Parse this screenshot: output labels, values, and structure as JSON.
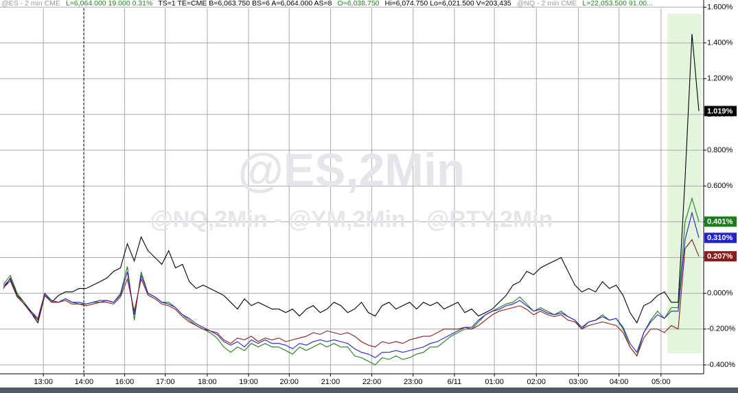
{
  "header": [
    {
      "text": "@ES - 2 min  CME",
      "color": "#9a9a9a"
    },
    {
      "text": "L=6,064.000  19.000  0.31%",
      "color": "#1e8a1e"
    },
    {
      "text": "TS=1  TE=CME  B=6,063.750  BS=6  A=6,064.000  AS=8",
      "color": "#000000"
    },
    {
      "text": "O=6,038.750",
      "color": "#1e8a1e"
    },
    {
      "text": "Hi=6,074.750  Lo=6,021.500  V=203,435",
      "color": "#000000"
    },
    {
      "text": "@NQ - 2 min  CME",
      "color": "#9a9a9a"
    },
    {
      "text": "L=22,053.500  91.00...",
      "color": "#1e8a1e"
    }
  ],
  "chart_data": {
    "type": "line",
    "watermark": "@ES,2Min",
    "subwatermark": "@NQ,2Min  -  @YM,2Min  -  @RTY,2Min",
    "ylim": [
      -0.45,
      1.64
    ],
    "yticks": [
      {
        "value": -0.4,
        "label": "-0.400%"
      },
      {
        "value": -0.2,
        "label": "-0.200%"
      },
      {
        "value": 0,
        "label": "0.000%"
      },
      {
        "value": 0.2,
        "label": "0.200%"
      },
      {
        "value": 0.4,
        "label": "0.400%"
      },
      {
        "value": 0.6,
        "label": "0.600%"
      },
      {
        "value": 0.8,
        "label": "0.800%"
      },
      {
        "value": 1.0,
        "label": "1.000%"
      },
      {
        "value": 1.2,
        "label": "1.200%"
      },
      {
        "value": 1.4,
        "label": "1.400%"
      },
      {
        "value": 1.6,
        "label": "1.600%"
      }
    ],
    "xlim": [
      -0.5,
      101.7
    ],
    "xticks": [
      {
        "value": 5.8,
        "label": "13:00"
      },
      {
        "value": 11.7,
        "label": "14:00"
      },
      {
        "value": 17.6,
        "label": "16:00"
      },
      {
        "value": 23.5,
        "label": "17:00"
      },
      {
        "value": 29.6,
        "label": "18:00"
      },
      {
        "value": 35.6,
        "label": "19:00"
      },
      {
        "value": 41.5,
        "label": "20:00"
      },
      {
        "value": 47.5,
        "label": "21:00"
      },
      {
        "value": 53.5,
        "label": "22:00"
      },
      {
        "value": 59.5,
        "label": "23:00"
      },
      {
        "value": 65.5,
        "label": "6/11"
      },
      {
        "value": 71.3,
        "label": "01:00"
      },
      {
        "value": 77.4,
        "label": "02:00"
      },
      {
        "value": 83.5,
        "label": "03:00"
      },
      {
        "value": 89.4,
        "label": "04:00"
      },
      {
        "value": 95.5,
        "label": "05:00"
      }
    ],
    "grid": true,
    "series": [
      {
        "color": "#000000",
        "last": {
          "value": 1.019,
          "label": "1.019%"
        },
        "values": [
          0.027,
          0.085,
          -0.012,
          -0.05,
          -0.108,
          -0.165,
          -0.012,
          -0.05,
          -0.012,
          0.008,
          0.008,
          0.027,
          0.027,
          0.046,
          0.065,
          0.085,
          0.123,
          0.142,
          0.277,
          0.181,
          0.315,
          0.238,
          0.2,
          0.162,
          0.238,
          0.142,
          0.162,
          0.065,
          0.027,
          0.046,
          0.027,
          0.008,
          -0.012,
          -0.05,
          -0.088,
          -0.031,
          -0.069,
          -0.05,
          -0.069,
          -0.088,
          -0.088,
          -0.108,
          -0.088,
          -0.127,
          -0.088,
          -0.069,
          -0.108,
          -0.088,
          -0.05,
          -0.069,
          -0.108,
          -0.088,
          -0.05,
          -0.108,
          -0.127,
          -0.069,
          -0.05,
          -0.088,
          -0.069,
          -0.05,
          -0.088,
          -0.05,
          -0.069,
          -0.05,
          -0.088,
          -0.069,
          -0.05,
          -0.108,
          -0.088,
          -0.127,
          -0.108,
          -0.088,
          -0.05,
          -0.012,
          0.046,
          0.065,
          0.123,
          0.104,
          0.142,
          0.162,
          0.181,
          0.2,
          0.123,
          0.046,
          0.008,
          0.027,
          0.008,
          0.065,
          0.027,
          0.046,
          -0.012,
          -0.108,
          -0.165,
          -0.069,
          -0.05,
          -0.012,
          0.008,
          -0.05,
          -0.05,
          0.64,
          1.45,
          1.019
        ]
      },
      {
        "color": "#1e7b1e",
        "last": {
          "value": 0.401,
          "label": "0.401%"
        },
        "values": [
          0.05,
          0.1,
          0.0,
          -0.05,
          -0.1,
          -0.15,
          0.0,
          -0.05,
          -0.05,
          -0.03,
          -0.05,
          -0.06,
          -0.06,
          -0.05,
          -0.05,
          -0.04,
          -0.05,
          0.0,
          0.15,
          -0.15,
          0.12,
          0.0,
          -0.02,
          -0.05,
          -0.05,
          -0.08,
          -0.12,
          -0.15,
          -0.18,
          -0.2,
          -0.22,
          -0.25,
          -0.3,
          -0.33,
          -0.3,
          -0.32,
          -0.28,
          -0.3,
          -0.28,
          -0.3,
          -0.3,
          -0.32,
          -0.34,
          -0.3,
          -0.32,
          -0.3,
          -0.28,
          -0.3,
          -0.28,
          -0.3,
          -0.3,
          -0.35,
          -0.36,
          -0.38,
          -0.4,
          -0.36,
          -0.37,
          -0.35,
          -0.37,
          -0.36,
          -0.34,
          -0.33,
          -0.3,
          -0.3,
          -0.27,
          -0.24,
          -0.22,
          -0.2,
          -0.2,
          -0.16,
          -0.12,
          -0.1,
          -0.08,
          -0.06,
          -0.05,
          -0.02,
          -0.06,
          -0.1,
          -0.08,
          -0.1,
          -0.12,
          -0.1,
          -0.13,
          -0.15,
          -0.2,
          -0.16,
          -0.15,
          -0.12,
          -0.15,
          -0.14,
          -0.2,
          -0.3,
          -0.35,
          -0.22,
          -0.15,
          -0.1,
          -0.14,
          -0.08,
          -0.08,
          0.4,
          0.53,
          0.401
        ]
      },
      {
        "color": "#2323c8",
        "last": {
          "value": 0.31,
          "label": "0.310%"
        },
        "values": [
          0.04,
          0.08,
          -0.02,
          -0.06,
          -0.1,
          -0.14,
          0.0,
          -0.04,
          -0.05,
          -0.03,
          -0.05,
          -0.05,
          -0.06,
          -0.05,
          -0.04,
          -0.04,
          -0.05,
          -0.01,
          0.12,
          -0.12,
          0.1,
          0.0,
          -0.02,
          -0.05,
          -0.06,
          -0.08,
          -0.12,
          -0.14,
          -0.17,
          -0.19,
          -0.21,
          -0.23,
          -0.27,
          -0.29,
          -0.27,
          -0.3,
          -0.26,
          -0.28,
          -0.26,
          -0.28,
          -0.28,
          -0.29,
          -0.31,
          -0.28,
          -0.29,
          -0.27,
          -0.26,
          -0.27,
          -0.26,
          -0.27,
          -0.28,
          -0.31,
          -0.33,
          -0.34,
          -0.36,
          -0.33,
          -0.33,
          -0.32,
          -0.33,
          -0.32,
          -0.31,
          -0.3,
          -0.28,
          -0.27,
          -0.25,
          -0.23,
          -0.21,
          -0.19,
          -0.19,
          -0.15,
          -0.12,
          -0.1,
          -0.09,
          -0.07,
          -0.06,
          -0.04,
          -0.07,
          -0.1,
          -0.09,
          -0.11,
          -0.12,
          -0.11,
          -0.13,
          -0.15,
          -0.19,
          -0.16,
          -0.15,
          -0.13,
          -0.15,
          -0.14,
          -0.19,
          -0.28,
          -0.33,
          -0.22,
          -0.16,
          -0.12,
          -0.14,
          -0.1,
          -0.1,
          0.3,
          0.45,
          0.31
        ]
      },
      {
        "color": "#8b1c1c",
        "last": {
          "value": 0.207,
          "label": "0.207%"
        },
        "values": [
          0.03,
          0.07,
          -0.02,
          -0.06,
          -0.11,
          -0.15,
          -0.01,
          -0.05,
          -0.05,
          -0.04,
          -0.06,
          -0.06,
          -0.07,
          -0.06,
          -0.05,
          -0.05,
          -0.06,
          -0.02,
          0.08,
          -0.1,
          0.08,
          -0.01,
          -0.03,
          -0.06,
          -0.07,
          -0.09,
          -0.13,
          -0.16,
          -0.18,
          -0.2,
          -0.21,
          -0.22,
          -0.26,
          -0.28,
          -0.25,
          -0.26,
          -0.24,
          -0.27,
          -0.25,
          -0.26,
          -0.25,
          -0.27,
          -0.26,
          -0.25,
          -0.24,
          -0.22,
          -0.23,
          -0.21,
          -0.22,
          -0.23,
          -0.22,
          -0.24,
          -0.27,
          -0.29,
          -0.3,
          -0.27,
          -0.28,
          -0.27,
          -0.28,
          -0.26,
          -0.25,
          -0.24,
          -0.24,
          -0.22,
          -0.2,
          -0.2,
          -0.2,
          -0.19,
          -0.2,
          -0.18,
          -0.15,
          -0.12,
          -0.1,
          -0.09,
          -0.08,
          -0.07,
          -0.09,
          -0.12,
          -0.1,
          -0.12,
          -0.13,
          -0.12,
          -0.15,
          -0.16,
          -0.2,
          -0.18,
          -0.17,
          -0.16,
          -0.17,
          -0.18,
          -0.22,
          -0.3,
          -0.35,
          -0.25,
          -0.2,
          -0.2,
          -0.22,
          -0.18,
          -0.2,
          0.25,
          0.3,
          0.207
        ]
      }
    ]
  }
}
